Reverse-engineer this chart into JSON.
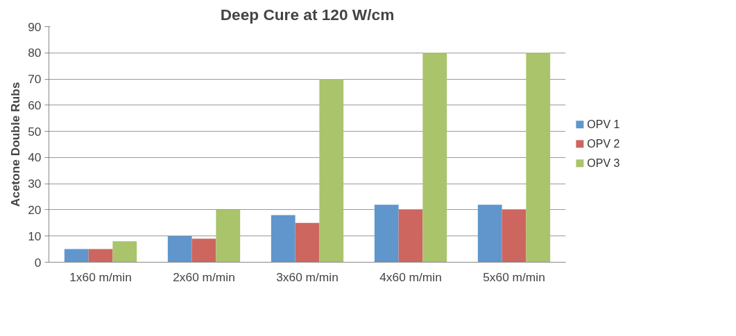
{
  "chart_data": {
    "type": "bar",
    "title": "Deep Cure at 120 W/cm",
    "ylabel": "Acetone Double Rubs",
    "categories": [
      "1x60 m/min",
      "2x60 m/min",
      "3x60 m/min",
      "4x60 m/min",
      "5x60 m/min"
    ],
    "series": [
      {
        "name": "OPV 1",
        "color": "#6096cc",
        "values": [
          5,
          10,
          18,
          22,
          22
        ]
      },
      {
        "name": "OPV 2",
        "color": "#cd665f",
        "values": [
          5,
          9,
          15,
          20,
          20
        ]
      },
      {
        "name": "OPV 3",
        "color": "#a9c46b",
        "values": [
          8,
          20,
          70,
          80,
          80
        ]
      }
    ],
    "ylim": [
      0,
      90
    ],
    "yticks": [
      0,
      10,
      20,
      30,
      40,
      50,
      60,
      70,
      80,
      90
    ],
    "grid": "y",
    "legend": "right"
  }
}
